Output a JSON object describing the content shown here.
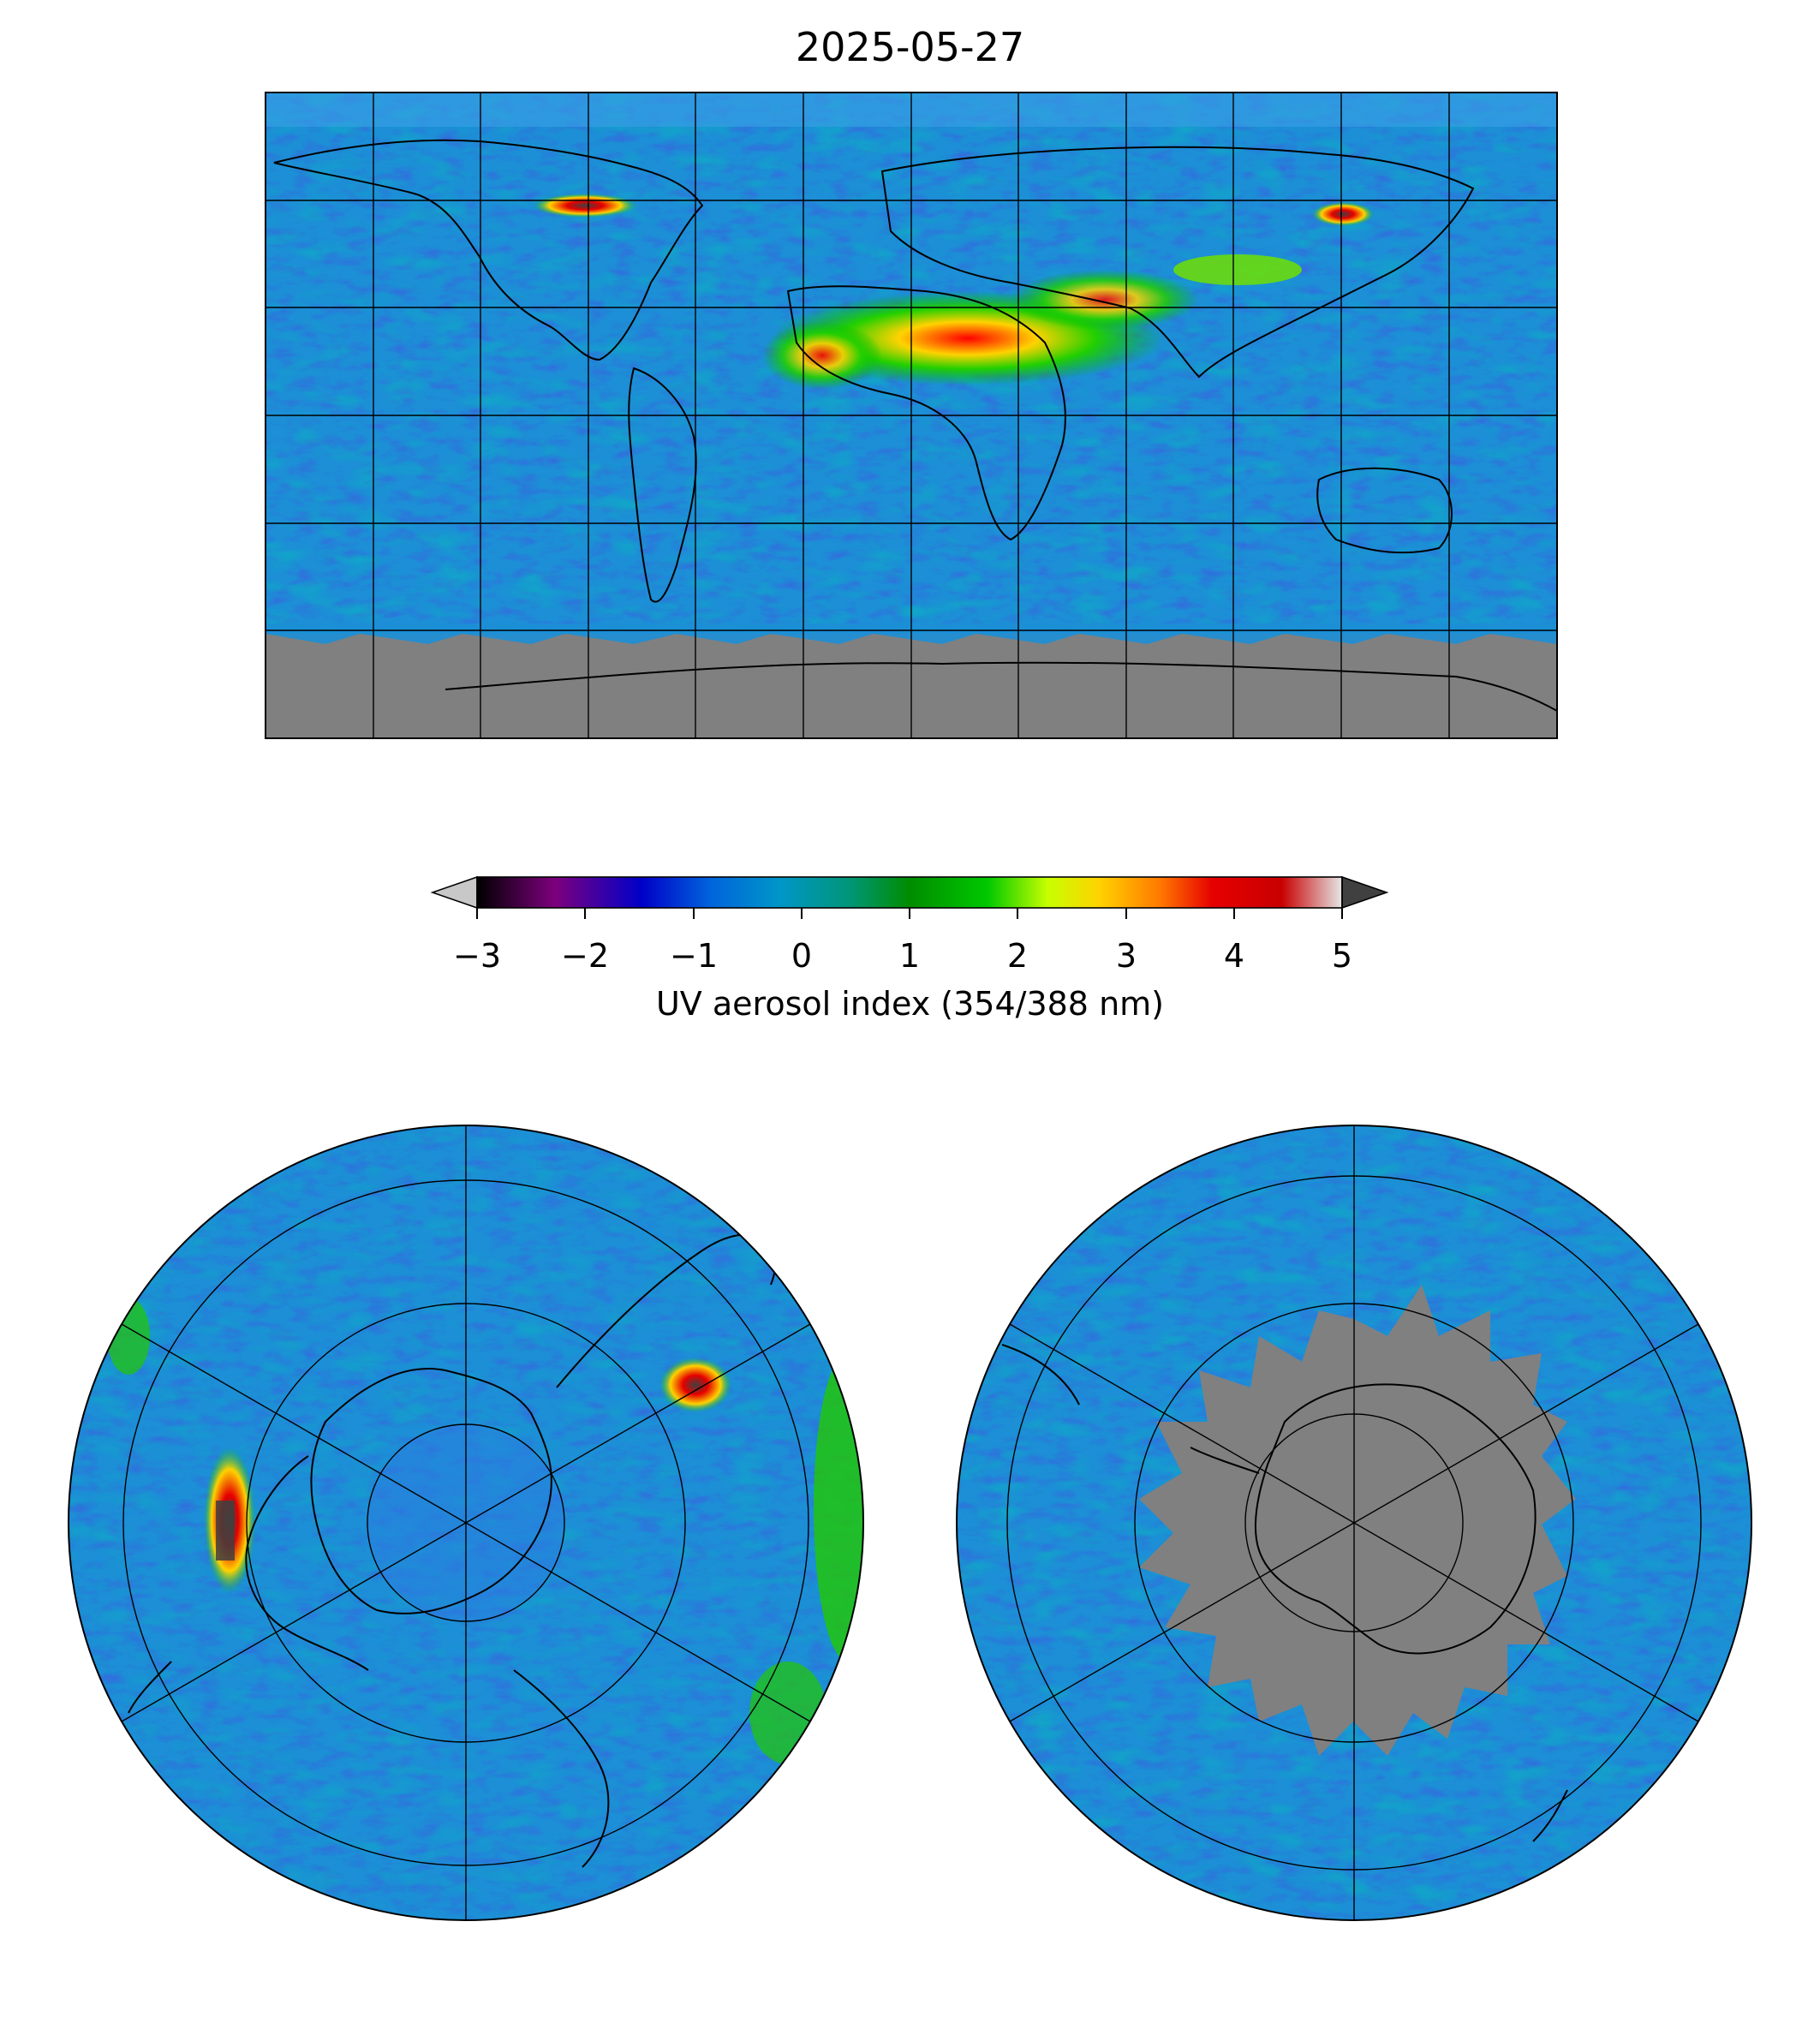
{
  "figure": {
    "title": "2025-05-27"
  },
  "colorbar": {
    "label": "UV aerosol index (354/388 nm)",
    "ticks": [
      "−3",
      "−2",
      "−1",
      "0",
      "1",
      "2",
      "3",
      "4",
      "5"
    ],
    "range": [
      -3,
      5
    ],
    "extend": "both",
    "under_color": "#c8c8c8",
    "over_color": "#404040",
    "colors": [
      "#000000",
      "#7d007d",
      "#0000c8",
      "#0064dc",
      "#0096c8",
      "#009678",
      "#008c00",
      "#00c800",
      "#c8ff00",
      "#ffd200",
      "#ff7800",
      "#e60000",
      "#c80000",
      "#e6e6e6"
    ]
  },
  "maps": [
    {
      "name": "global",
      "projection": "equirectangular",
      "grid": true
    },
    {
      "name": "north-pole",
      "projection": "north-polar-stereographic",
      "grid": true
    },
    {
      "name": "south-pole",
      "projection": "south-polar-stereographic",
      "grid": true
    }
  ],
  "colors": {
    "background_field": "#1c8fd6",
    "no_data": "#808080",
    "coastline": "#000000"
  }
}
